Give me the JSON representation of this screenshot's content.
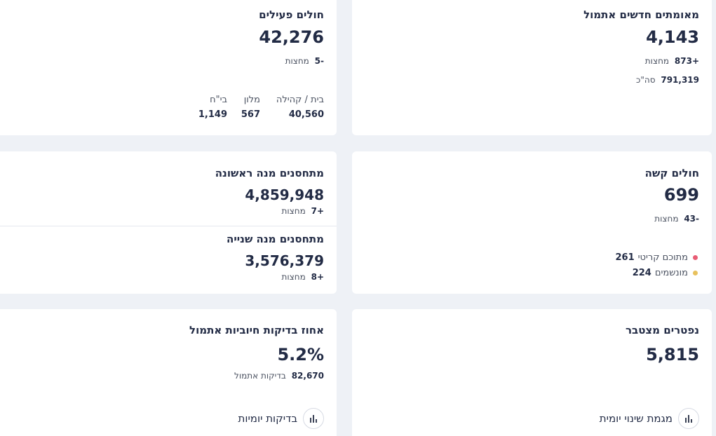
{
  "cards": {
    "new_verified": {
      "title": "מאומתים חדשים אתמול",
      "value": "4,143",
      "delta_num": "873+",
      "delta_label": "מחצות",
      "total_num": "791,319",
      "total_label": "סה\"כ"
    },
    "active": {
      "title": "חולים פעילים",
      "value": "42,276",
      "delta_num": "5-",
      "delta_label": "מחצות",
      "breakdown": [
        {
          "label": "בית / קהילה",
          "value": "40,560"
        },
        {
          "label": "מלון",
          "value": "567"
        },
        {
          "label": "בי\"ח",
          "value": "1,149"
        }
      ]
    },
    "severe": {
      "title": "חולים קשה",
      "value": "699",
      "delta_num": "43-",
      "delta_label": "מחצות",
      "legend": [
        {
          "label": "מתוכם קריטי",
          "value": "261",
          "color": "#e85d75"
        },
        {
          "label": "מונשמים",
          "value": "224",
          "color": "#e8c15d"
        }
      ]
    },
    "vaccinated": {
      "first_title": "מתחסנים מנה ראשונה",
      "first_value": "4,859,948",
      "first_delta_num": "7+",
      "first_delta_label": "מחצות",
      "second_title": "מתחסנים מנה שנייה",
      "second_value": "3,576,379",
      "second_delta_num": "8+",
      "second_delta_label": "מחצות"
    },
    "deaths": {
      "title": "נפטרים מצטבר",
      "value": "5,815",
      "link_label": "מגמת שינוי יומית",
      "link_icon": "bar-chart-icon"
    },
    "positive_rate": {
      "title": "אחוז בדיקות חיוביות אתמול",
      "value": "5.2%",
      "tests_num": "82,670",
      "tests_label": "בדיקות אתמול",
      "link_label": "בדיקות יומיות",
      "link_icon": "bar-chart-icon"
    }
  }
}
